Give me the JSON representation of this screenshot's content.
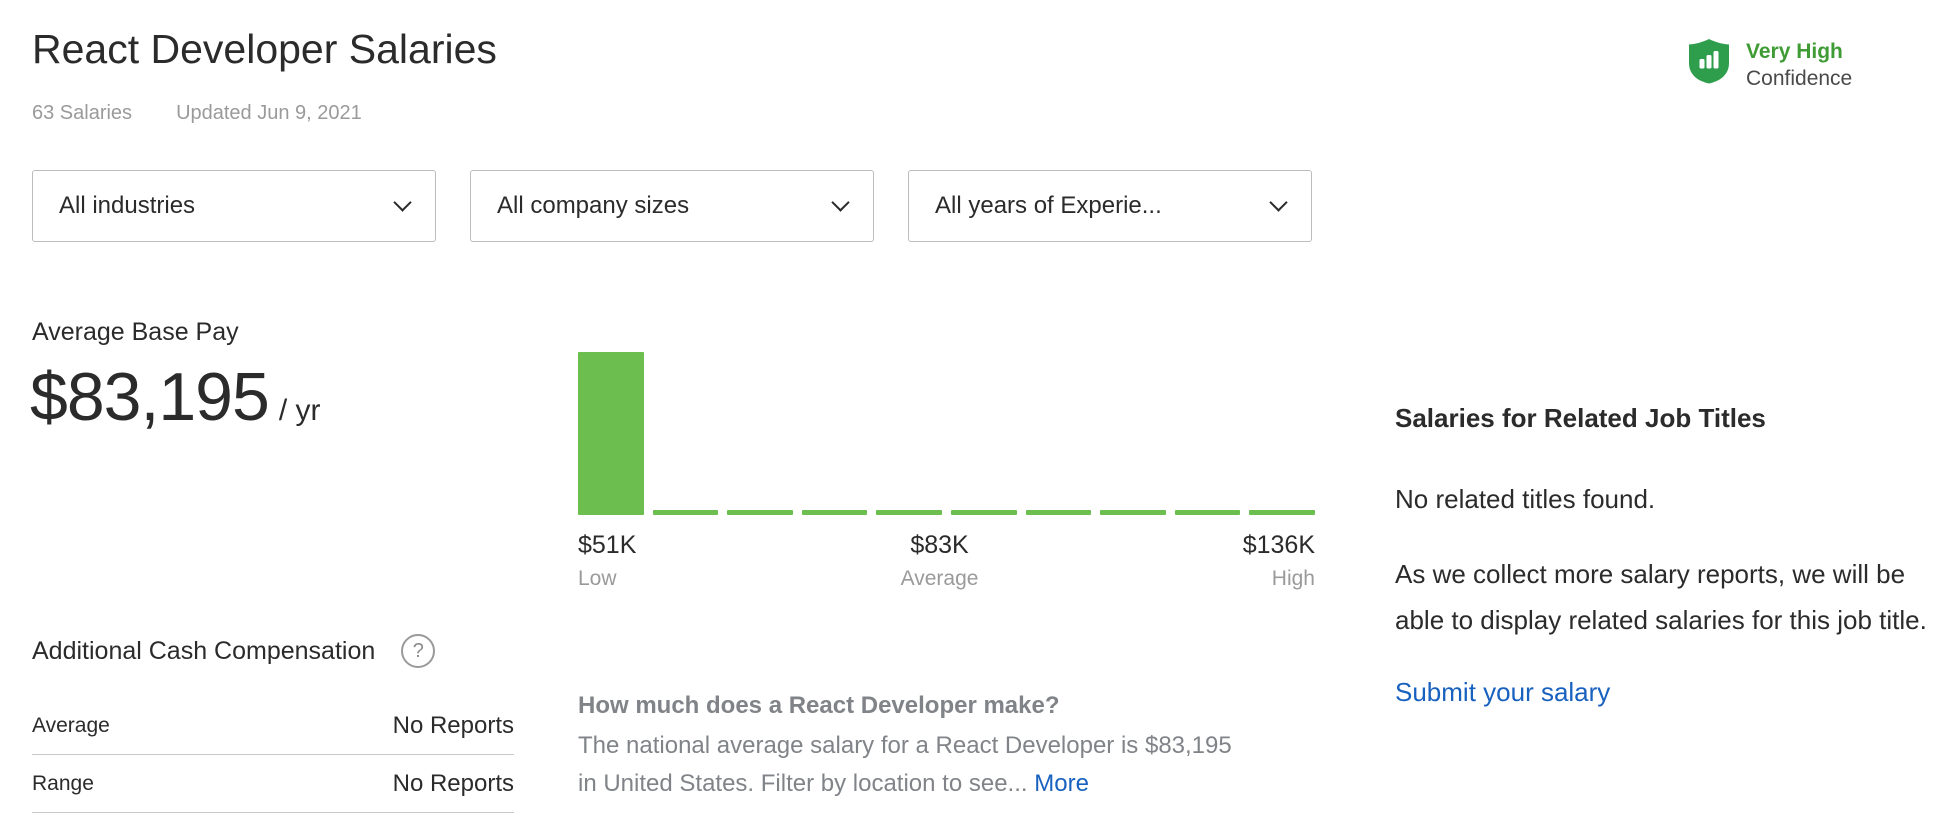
{
  "header": {
    "title": "React Developer Salaries",
    "salaries_count": "63 Salaries",
    "updated": "Updated Jun 9, 2021",
    "confidence": {
      "level": "Very High",
      "label": "Confidence"
    }
  },
  "filters": [
    {
      "label": "All industries"
    },
    {
      "label": "All company sizes"
    },
    {
      "label": "All years of Experie..."
    }
  ],
  "base_pay": {
    "label": "Average Base Pay",
    "amount": "$83,195",
    "period": "/ yr"
  },
  "chart_data": {
    "type": "bar",
    "ticks": [
      {
        "value": "$51K",
        "label": "Low"
      },
      {
        "value": "$83K",
        "label": "Average"
      },
      {
        "value": "$136K",
        "label": "High"
      }
    ],
    "x_range_k_usd": [
      51,
      136
    ],
    "bars_rel": [
      1,
      0.03,
      0.03,
      0.03,
      0.03,
      0.03,
      0.03,
      0.03,
      0.03,
      0.03
    ],
    "bar_color": "#6cbe4e",
    "grid": false,
    "legend": false
  },
  "additional_cash": {
    "title": "Additional Cash Compensation",
    "help_icon": "?",
    "rows": [
      {
        "label": "Average",
        "value": "No Reports"
      },
      {
        "label": "Range",
        "value": "No Reports"
      }
    ]
  },
  "about": {
    "question": "How much does a React Developer make?",
    "body": "The national average salary for a React Developer is $83,195 in United States. Filter by location to see... ",
    "more_label": "More"
  },
  "related": {
    "title": "Salaries for Related Job Titles",
    "empty": "No related titles found.",
    "body": "As we collect more salary reports, we will be able to display related salaries for this job title.",
    "cta": "Submit your salary"
  },
  "colors": {
    "bar_green": "#6cbe4e",
    "shield_green": "#2f9e4c",
    "confidence_green": "#3f9c35",
    "link_blue": "#1861bf"
  }
}
